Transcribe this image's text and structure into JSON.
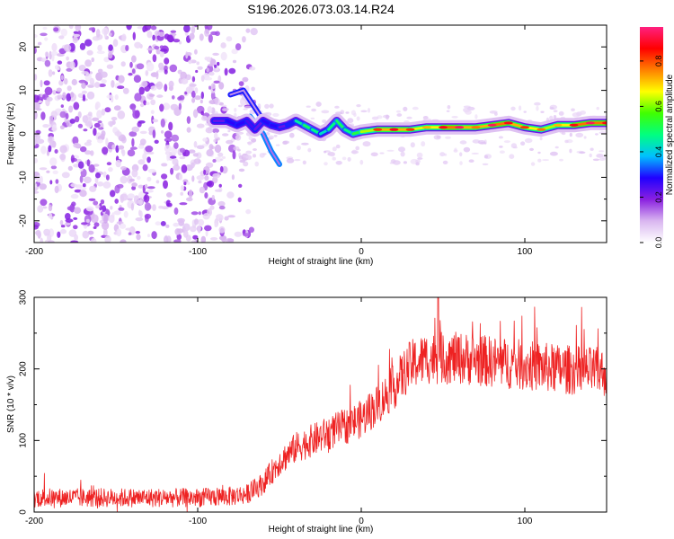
{
  "title": "S196.2026.073.03.14.R24",
  "chart_data": [
    {
      "type": "heatmap",
      "xlabel": "Height of straight line (km)",
      "ylabel": "Frequency (Hz)",
      "xlim": [
        -200,
        150
      ],
      "ylim": [
        -25,
        25
      ],
      "xticks": [
        -200,
        -100,
        0,
        100
      ],
      "yticks": [
        -20,
        -10,
        0,
        10,
        20
      ],
      "colorbar": {
        "label": "Normalized spectral amplitude",
        "range": [
          0,
          0.95
        ],
        "ticks": [
          0.0,
          0.2,
          0.4,
          0.6,
          0.8
        ],
        "colors": [
          "#ffffff",
          "#d9b6f0",
          "#8a20e0",
          "#2000ff",
          "#00c0ff",
          "#00ff80",
          "#40ff00",
          "#ffff00",
          "#ff8000",
          "#ff0000",
          "#ff2080"
        ]
      },
      "noise_region_x": [
        -200,
        -85
      ],
      "ridge": [
        {
          "x": -90,
          "y": 3,
          "v": 0.15
        },
        {
          "x": -82,
          "y": 3,
          "v": 0.3
        },
        {
          "x": -76,
          "y": 2,
          "v": 0.25
        },
        {
          "x": -70,
          "y": 3,
          "v": 0.3
        },
        {
          "x": -65,
          "y": 1,
          "v": 0.2
        },
        {
          "x": -60,
          "y": 3,
          "v": 0.25
        },
        {
          "x": -55,
          "y": 2,
          "v": 0.3
        },
        {
          "x": -50,
          "y": 1.5,
          "v": 0.25
        },
        {
          "x": -45,
          "y": 2,
          "v": 0.2
        },
        {
          "x": -40,
          "y": 3,
          "v": 0.4
        },
        {
          "x": -35,
          "y": 2,
          "v": 0.5
        },
        {
          "x": -30,
          "y": 1,
          "v": 0.5
        },
        {
          "x": -25,
          "y": 0,
          "v": 0.45
        },
        {
          "x": -20,
          "y": 1,
          "v": 0.4
        },
        {
          "x": -15,
          "y": 3,
          "v": 0.55
        },
        {
          "x": -10,
          "y": 1,
          "v": 0.45
        },
        {
          "x": -5,
          "y": 0,
          "v": 0.5
        },
        {
          "x": 0,
          "y": 0.5,
          "v": 0.55
        },
        {
          "x": 10,
          "y": 1,
          "v": 0.7
        },
        {
          "x": 20,
          "y": 1,
          "v": 0.75
        },
        {
          "x": 30,
          "y": 1,
          "v": 0.7
        },
        {
          "x": 40,
          "y": 1.5,
          "v": 0.6
        },
        {
          "x": 50,
          "y": 1.5,
          "v": 0.75
        },
        {
          "x": 60,
          "y": 1.5,
          "v": 0.8
        },
        {
          "x": 70,
          "y": 1.5,
          "v": 0.65
        },
        {
          "x": 80,
          "y": 2,
          "v": 0.8
        },
        {
          "x": 90,
          "y": 2.5,
          "v": 0.75
        },
        {
          "x": 100,
          "y": 1.5,
          "v": 0.7
        },
        {
          "x": 110,
          "y": 1,
          "v": 0.65
        },
        {
          "x": 120,
          "y": 2,
          "v": 0.6
        },
        {
          "x": 130,
          "y": 2,
          "v": 0.75
        },
        {
          "x": 140,
          "y": 2.5,
          "v": 0.8
        },
        {
          "x": 150,
          "y": 2.5,
          "v": 0.75
        }
      ],
      "branches": [
        {
          "points": [
            [
              -80,
              9
            ],
            [
              -72,
              10
            ],
            [
              -65,
              6
            ],
            [
              -58,
              2
            ]
          ],
          "v": 0.3
        },
        {
          "points": [
            [
              -68,
              4
            ],
            [
              -60,
              0
            ],
            [
              -55,
              -4
            ],
            [
              -50,
              -7
            ]
          ],
          "v": 0.35
        }
      ]
    },
    {
      "type": "line",
      "xlabel": "Height of straight line (km)",
      "ylabel": "SNR (10 * v/v)",
      "xlim": [
        -200,
        150
      ],
      "ylim": [
        0,
        300
      ],
      "xticks": [
        -200,
        -100,
        0,
        100
      ],
      "yticks": [
        0,
        100,
        200,
        300
      ],
      "color": "#ee2222",
      "trend": {
        "x": [
          -200,
          -150,
          -100,
          -80,
          -70,
          -60,
          -50,
          -40,
          -30,
          -20,
          -10,
          0,
          10,
          20,
          30,
          40,
          60,
          80,
          100,
          120,
          150
        ],
        "y": [
          20,
          20,
          20,
          22,
          25,
          40,
          70,
          90,
          100,
          110,
          120,
          130,
          150,
          175,
          205,
          215,
          215,
          210,
          205,
          200,
          195
        ]
      },
      "noise_amplitude": 18,
      "peak": {
        "x": 47,
        "y": 300
      }
    }
  ]
}
